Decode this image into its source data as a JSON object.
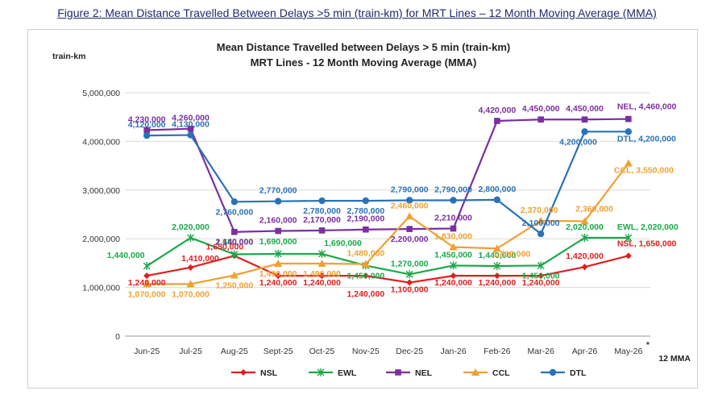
{
  "caption": "Figure 2: Mean Distance Travelled Between Delays >5 min (train-km) for MRT Lines – 12 Month Moving Average (MMA)",
  "chart_data": {
    "type": "line",
    "title": "Mean Distance Travelled between Delays > 5 min (train-km)",
    "subtitle": "MRT Lines - 12 Month Moving Average (MMA)",
    "ylabel": "train-km",
    "xlabel": "12 MMA",
    "note": "*",
    "ylim": [
      0,
      5000000
    ],
    "yticks": [
      "0",
      "1,000,000",
      "2,000,000",
      "3,000,000",
      "4,000,000",
      "5,000,000"
    ],
    "categories": [
      "Jun-25",
      "Jul-25",
      "Aug-25",
      "Sept-25",
      "Oct-25",
      "Nov-25",
      "Dec-25",
      "Jan-26",
      "Feb-26",
      "Mar-26",
      "Apr-26",
      "May-26"
    ],
    "grid": true,
    "legend": "bottom",
    "series": [
      {
        "name": "NSL",
        "color": "#e01e1e",
        "marker": "diamond",
        "values": [
          1240000,
          1410000,
          1650000,
          1240000,
          1240000,
          1240000,
          1100000,
          1240000,
          1240000,
          1240000,
          1420000,
          1650000
        ],
        "labels": [
          "1,240,000",
          "1,410,000",
          "1,650,000",
          "1,240,000",
          "1,240,000",
          "1,240,000",
          "1,100,000",
          "1,240,000",
          "1,240,000",
          "1,240,000",
          "1,420,000",
          "NSL, 1,650,000"
        ]
      },
      {
        "name": "EWL",
        "color": "#1aa84a",
        "marker": "asterisk",
        "values": [
          1440000,
          2020000,
          1680000,
          1690000,
          1690000,
          1450000,
          1270000,
          1450000,
          1440000,
          1450000,
          2020000,
          2020000
        ],
        "labels": [
          "1,440,000",
          "2,020,000",
          "1,680,000",
          "1,690,000",
          "1,690,000",
          "1,450,000",
          "1,270,000",
          "1,450,000",
          "1,440,000",
          "1,450,000",
          "2,020,000",
          "EWL, 2,020,000"
        ]
      },
      {
        "name": "NEL",
        "color": "#7b2fa0",
        "marker": "square",
        "values": [
          4230000,
          4260000,
          2140000,
          2160000,
          2170000,
          2190000,
          2200000,
          2210000,
          4420000,
          4450000,
          4450000,
          4460000
        ],
        "labels": [
          "4,230,000",
          "4,260,000",
          "2,140,000",
          "2,160,000",
          "2,170,000",
          "2,190,000",
          "2,200,000",
          "2,210,000",
          "4,420,000",
          "4,450,000",
          "4,450,000",
          "NEL, 4,460,000"
        ]
      },
      {
        "name": "CCL",
        "color": "#f0a030",
        "marker": "triangle",
        "values": [
          1070000,
          1070000,
          1250000,
          1490000,
          1490000,
          1480000,
          2460000,
          1830000,
          1800000,
          2370000,
          2360000,
          3550000
        ],
        "labels": [
          "1,070,000",
          "1,070,000",
          "1,250,000",
          "1,490,000",
          "1,490,000",
          "1,480,000",
          "2,460,000",
          "1,830,000",
          "1,800,000",
          "2,370,000",
          "2,360,000",
          "CCL, 3,550,000"
        ]
      },
      {
        "name": "DTL",
        "color": "#2a72b8",
        "marker": "circle",
        "values": [
          4120000,
          4130000,
          2760000,
          2770000,
          2780000,
          2780000,
          2790000,
          2790000,
          2800000,
          2100000,
          4200000,
          4200000
        ],
        "labels": [
          "4,120,000",
          "4,130,000",
          "2,760,000",
          "2,770,000",
          "2,780,000",
          "2,780,000",
          "2,790,000",
          "2,790,000",
          "2,800,000",
          "2,100,000",
          "4,200,000",
          "DTL, 4,200,000"
        ]
      }
    ]
  }
}
